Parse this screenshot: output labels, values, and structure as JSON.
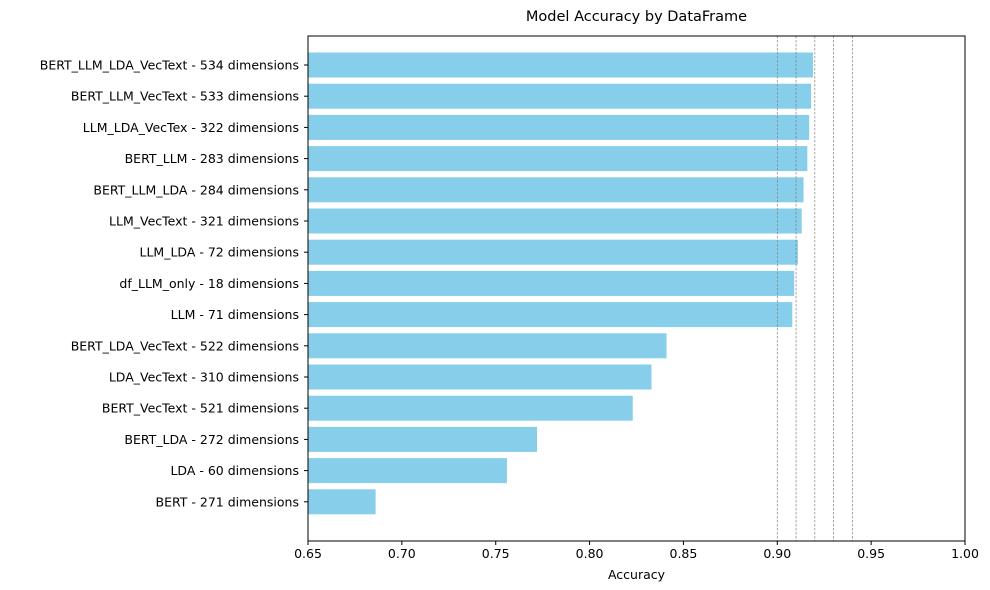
{
  "chart_data": {
    "type": "bar",
    "orientation": "horizontal",
    "title": "Model Accuracy by DataFrame",
    "xlabel": "Accuracy",
    "ylabel": "",
    "xlim": [
      0.65,
      1.0
    ],
    "xticks": [
      "0.65",
      "0.70",
      "0.75",
      "0.80",
      "0.85",
      "0.90",
      "0.95",
      "1.00"
    ],
    "bar_color": "#87CEEB",
    "reference_lines": [
      0.9,
      0.91,
      0.92,
      0.93,
      0.94
    ],
    "reference_line_color": "#808080",
    "grid": false,
    "categories": [
      "BERT_LLM_LDA_VecText - 534 dimensions",
      "BERT_LLM_VecText - 533 dimensions",
      "LLM_LDA_VecTex - 322 dimensions",
      "BERT_LLM - 283 dimensions",
      "BERT_LLM_LDA - 284 dimensions",
      "LLM_VecText - 321 dimensions",
      "LLM_LDA - 72 dimensions",
      "df_LLM_only - 18 dimensions",
      "LLM - 71 dimensions",
      "BERT_LDA_VecText - 522 dimensions",
      "LDA_VecText - 310 dimensions",
      "BERT_VecText - 521 dimensions",
      "BERT_LDA - 272 dimensions",
      "LDA - 60 dimensions",
      "BERT - 271 dimensions"
    ],
    "values": [
      0.919,
      0.918,
      0.917,
      0.916,
      0.914,
      0.913,
      0.911,
      0.909,
      0.908,
      0.841,
      0.833,
      0.823,
      0.772,
      0.756,
      0.686
    ]
  }
}
